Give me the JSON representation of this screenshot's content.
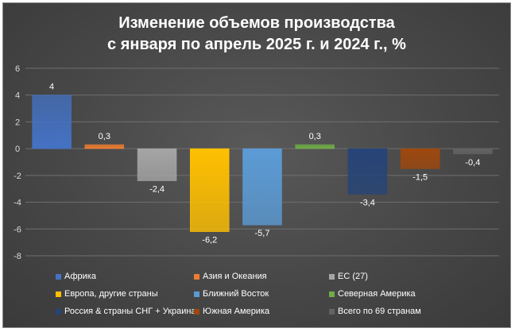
{
  "chart_data": {
    "type": "bar",
    "title_lines": [
      "Изменение объемов производства",
      "с января по апрель 2025 г. и 2024 г., %"
    ],
    "xlabel": "",
    "ylabel": "",
    "ylim": [
      -8,
      6
    ],
    "yticks": [
      6,
      4,
      2,
      0,
      -2,
      -4,
      -6,
      -8
    ],
    "grid": true,
    "legend_position": "bottom",
    "categories": [
      "Африка",
      "Азия и Океания",
      "ЕС (27)",
      "Европа, другие страны",
      "Ближний Восток",
      "Северная Америка",
      "Россия & страны СНГ + Украина",
      "Южная Америка",
      "Всего по 69 странам"
    ],
    "values": [
      4,
      0.3,
      -2.4,
      -6.2,
      -5.7,
      0.3,
      -3.4,
      -1.5,
      -0.4
    ],
    "labels": [
      "4",
      "0,3",
      "-2,4",
      "-6,2",
      "-5,7",
      "0,3",
      "-3,4",
      "-1,5",
      "-0,4"
    ],
    "colors": [
      "#4472c4",
      "#ed7d31",
      "#a5a5a5",
      "#ffc000",
      "#5b9bd5",
      "#70ad47",
      "#264478",
      "#9e480e",
      "#636363"
    ]
  }
}
